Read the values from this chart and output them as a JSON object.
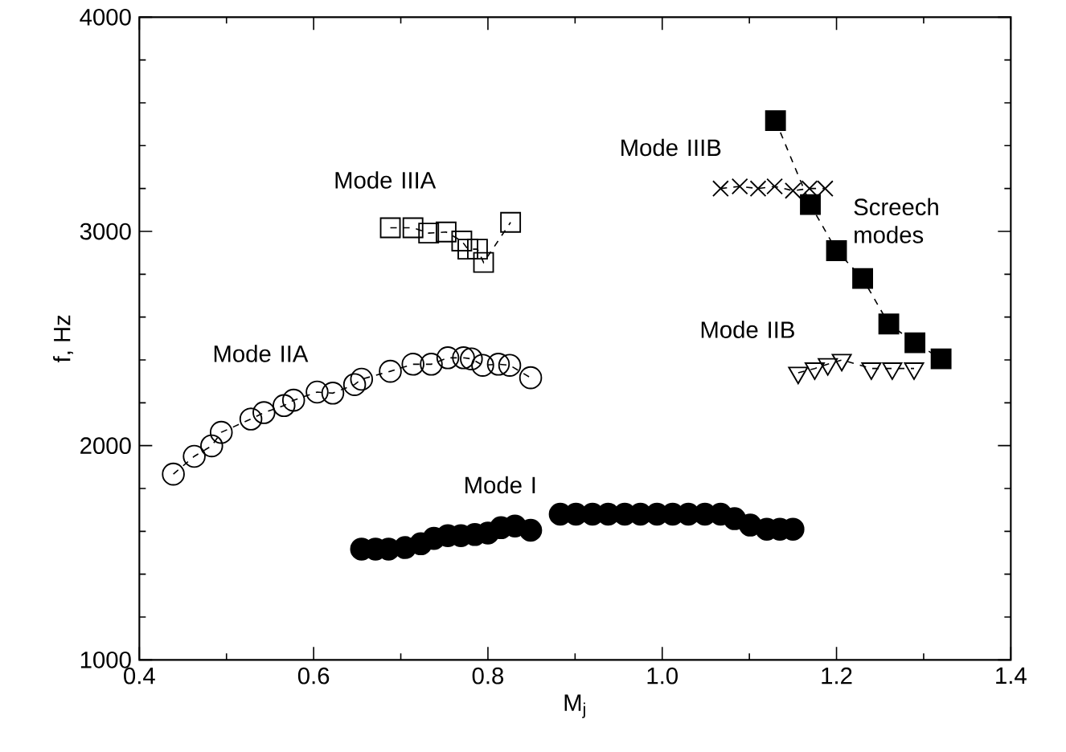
{
  "chart_data": {
    "type": "line",
    "xlabel": "M$_{j}$",
    "ylabel": "f, Hz",
    "xlim": [
      0.4,
      1.4
    ],
    "ylim": [
      1000,
      4000
    ],
    "xticks": [
      0.4,
      0.6,
      0.8,
      {
        "value": 1.0,
        "label": "1.0"
      },
      1.2,
      1.4
    ],
    "yticks": [
      1000,
      2000,
      3000,
      4000
    ],
    "line_style": "dashed",
    "series": [
      {
        "name": "Mode I",
        "type": "scatter",
        "color": "#000000",
        "marker": "circle",
        "x": [
          0.655,
          0.671,
          0.686,
          0.705,
          0.723,
          0.738,
          0.754,
          0.769,
          0.785,
          0.8,
          0.815,
          0.831,
          0.849,
          0.883,
          0.901,
          0.92,
          0.938,
          0.957,
          0.975,
          0.994,
          1.012,
          1.03,
          1.049,
          1.067,
          1.083,
          1.101,
          1.12,
          1.135,
          1.15
        ],
        "values": [
          1517,
          1517,
          1517,
          1524,
          1542,
          1567,
          1580,
          1580,
          1585,
          1592,
          1617,
          1625,
          1605,
          1680,
          1680,
          1680,
          1680,
          1680,
          1680,
          1680,
          1680,
          1680,
          1680,
          1680,
          1659,
          1629,
          1610,
          1610,
          1610
        ]
      },
      {
        "name": "Mode IIA",
        "color": "#000000",
        "marker": "circle",
        "x": [
          0.439,
          0.463,
          0.483,
          0.494,
          0.528,
          0.543,
          0.566,
          0.577,
          0.604,
          0.622,
          0.647,
          0.655,
          0.688,
          0.714,
          0.735,
          0.754,
          0.772,
          0.781,
          0.794,
          0.812,
          0.825,
          0.849
        ],
        "values": [
          1867,
          1950,
          1999,
          2062,
          2124,
          2154,
          2187,
          2212,
          2250,
          2245,
          2285,
          2310,
          2347,
          2380,
          2380,
          2410,
          2410,
          2405,
          2375,
          2380,
          2375,
          2317
        ]
      },
      {
        "name": "Mode IIIA",
        "color": "#000000",
        "marker": "square",
        "x": [
          0.688,
          0.714,
          0.732,
          0.752,
          0.77,
          0.777,
          0.788,
          0.795,
          0.826
        ],
        "values": [
          3017,
          3017,
          2992,
          2997,
          2955,
          2917,
          2917,
          2855,
          3042
        ]
      },
      {
        "name": "Mode IIIB",
        "color": "#000000",
        "marker": "cross",
        "x": [
          1.067,
          1.089,
          1.11,
          1.129,
          1.15,
          1.169,
          1.187
        ],
        "values": [
          3200,
          3210,
          3200,
          3210,
          3190,
          3200,
          3200
        ]
      },
      {
        "name": "Mode IIB",
        "color": "#000000",
        "marker": "triangle",
        "x": [
          1.156,
          1.175,
          1.19,
          1.206,
          1.24,
          1.264,
          1.289
        ],
        "values": [
          2340,
          2360,
          2380,
          2400,
          2360,
          2360,
          2360
        ]
      },
      {
        "name": "Screech modes",
        "color": "#000000",
        "marker": "square",
        "x": [
          1.13,
          1.17,
          1.2,
          1.23,
          1.26,
          1.29,
          1.32
        ],
        "values": [
          3517,
          3125,
          2910,
          2780,
          2568,
          2480,
          2405
        ]
      }
    ]
  }
}
